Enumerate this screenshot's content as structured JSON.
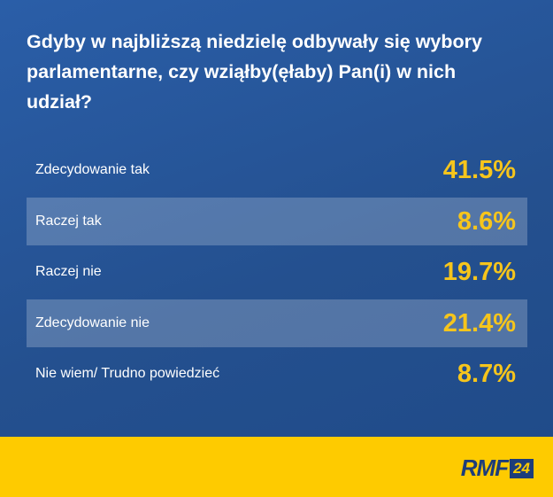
{
  "title": "Gdyby w najbliższą niedzielę odbywały się wybory parlamentarne, czy wziąłby(ęłaby) Pan(i) w nich udział?",
  "rows": [
    {
      "label": "Zdecydowanie tak",
      "value": "41.5%"
    },
    {
      "label": "Raczej tak",
      "value": "8.6%"
    },
    {
      "label": "Raczej nie",
      "value": "19.7%"
    },
    {
      "label": "Zdecydowanie nie",
      "value": "21.4%"
    },
    {
      "label": "Nie wiem/ Trudno powiedzieć",
      "value": "8.7%"
    }
  ],
  "logo": {
    "name": "RMF",
    "number": "24"
  }
}
